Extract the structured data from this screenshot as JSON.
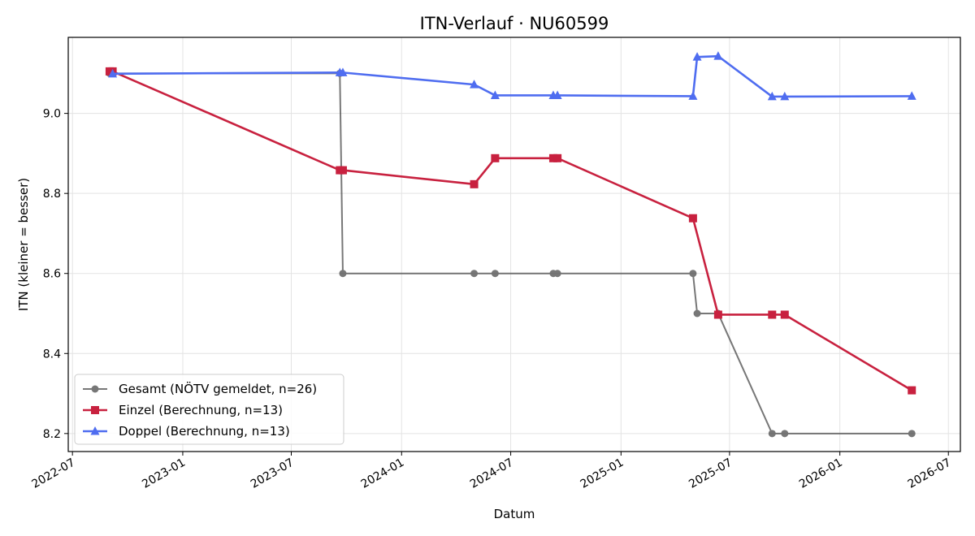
{
  "chart_data": {
    "type": "line",
    "title": "ITN-Verlauf · NU60599",
    "xlabel": "Datum",
    "ylabel": "ITN  (kleiner = besser)",
    "x_axis": "date",
    "xlim": [
      "2022-06-24",
      "2026-07-21"
    ],
    "ylim": [
      8.155,
      9.19
    ],
    "x_ticks": [
      {
        "date": "2022-07-01",
        "label": "2022-07"
      },
      {
        "date": "2023-01-01",
        "label": "2023-01"
      },
      {
        "date": "2023-07-01",
        "label": "2023-07"
      },
      {
        "date": "2024-01-01",
        "label": "2024-01"
      },
      {
        "date": "2024-07-01",
        "label": "2024-07"
      },
      {
        "date": "2025-01-01",
        "label": "2025-01"
      },
      {
        "date": "2025-07-01",
        "label": "2025-07"
      },
      {
        "date": "2026-01-01",
        "label": "2026-01"
      },
      {
        "date": "2026-07-01",
        "label": "2026-07"
      }
    ],
    "y_ticks": [
      8.2,
      8.4,
      8.6,
      8.8,
      9.0
    ],
    "grid": true,
    "legend_position": "bottom-left",
    "series": [
      {
        "name": "Gesamt (NÖTV gemeldet, n=26)",
        "color": "#444444",
        "marker": "circle",
        "points": [
          {
            "x": "2022-09-01",
            "y": 9.1
          },
          {
            "x": "2022-09-06",
            "y": 9.1
          },
          {
            "x": "2023-09-20",
            "y": 9.1
          },
          {
            "x": "2023-09-25",
            "y": 8.6
          },
          {
            "x": "2024-05-01",
            "y": 8.6
          },
          {
            "x": "2024-06-05",
            "y": 8.6
          },
          {
            "x": "2024-09-10",
            "y": 8.6
          },
          {
            "x": "2024-09-17",
            "y": 8.6
          },
          {
            "x": "2025-05-01",
            "y": 8.6
          },
          {
            "x": "2025-05-08",
            "y": 8.5
          },
          {
            "x": "2025-06-12",
            "y": 8.5
          },
          {
            "x": "2025-09-10",
            "y": 8.2
          },
          {
            "x": "2025-10-01",
            "y": 8.2
          },
          {
            "x": "2026-05-01",
            "y": 8.2
          }
        ]
      },
      {
        "name": "Einzel (Berechnung, n=13)",
        "color": "#c8213f",
        "marker": "square",
        "points": [
          {
            "x": "2022-09-01",
            "y": 9.105
          },
          {
            "x": "2022-09-06",
            "y": 9.105
          },
          {
            "x": "2023-09-20",
            "y": 8.858
          },
          {
            "x": "2023-09-25",
            "y": 8.858
          },
          {
            "x": "2024-05-01",
            "y": 8.823
          },
          {
            "x": "2024-06-05",
            "y": 8.888
          },
          {
            "x": "2024-09-10",
            "y": 8.888
          },
          {
            "x": "2024-09-17",
            "y": 8.888
          },
          {
            "x": "2025-05-01",
            "y": 8.738
          },
          {
            "x": "2025-06-12",
            "y": 8.497
          },
          {
            "x": "2025-09-10",
            "y": 8.497
          },
          {
            "x": "2025-10-01",
            "y": 8.497
          },
          {
            "x": "2026-05-01",
            "y": 8.308
          }
        ]
      },
      {
        "name": "Doppel (Berechnung, n=13)",
        "color": "#4f6df0",
        "marker": "triangle",
        "points": [
          {
            "x": "2022-09-06",
            "y": 9.099
          },
          {
            "x": "2023-09-20",
            "y": 9.102
          },
          {
            "x": "2023-09-25",
            "y": 9.102
          },
          {
            "x": "2024-05-01",
            "y": 9.072
          },
          {
            "x": "2024-06-05",
            "y": 9.045
          },
          {
            "x": "2024-09-10",
            "y": 9.045
          },
          {
            "x": "2024-09-17",
            "y": 9.045
          },
          {
            "x": "2025-05-01",
            "y": 9.043
          },
          {
            "x": "2025-05-08",
            "y": 9.141
          },
          {
            "x": "2025-06-12",
            "y": 9.143
          },
          {
            "x": "2025-09-10",
            "y": 9.042
          },
          {
            "x": "2025-10-01",
            "y": 9.042
          },
          {
            "x": "2026-05-01",
            "y": 9.043
          }
        ]
      }
    ]
  }
}
